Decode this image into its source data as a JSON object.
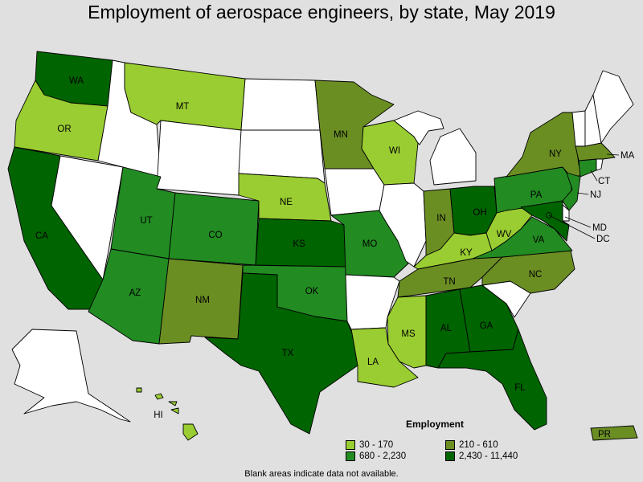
{
  "title": "Employment of aerospace engineers, by state, May 2019",
  "note": "Blank areas indicate data not available.",
  "legend": {
    "title": "Employment",
    "items": [
      {
        "label": "30 - 170",
        "color": "#9acd32"
      },
      {
        "label": "210 - 610",
        "color": "#6b8e23"
      },
      {
        "label": "680 - 2,230",
        "color": "#228b22"
      },
      {
        "label": "2,430 - 11,440",
        "color": "#006400"
      }
    ]
  },
  "colors": {
    "blank": "#ffffff",
    "background": "#e0e0e0",
    "c1": "#9acd32",
    "c2": "#6b8e23",
    "c3": "#228b22",
    "c4": "#006400"
  },
  "states": [
    {
      "abbr": "WA",
      "class": "c4"
    },
    {
      "abbr": "OR",
      "class": "c1"
    },
    {
      "abbr": "CA",
      "class": "c4"
    },
    {
      "abbr": "ID",
      "class": "blank"
    },
    {
      "abbr": "NV",
      "class": "blank"
    },
    {
      "abbr": "MT",
      "class": "c1"
    },
    {
      "abbr": "WY",
      "class": "blank"
    },
    {
      "abbr": "UT",
      "class": "c3"
    },
    {
      "abbr": "AZ",
      "class": "c3"
    },
    {
      "abbr": "CO",
      "class": "c3"
    },
    {
      "abbr": "NM",
      "class": "c2"
    },
    {
      "abbr": "ND",
      "class": "blank"
    },
    {
      "abbr": "SD",
      "class": "blank"
    },
    {
      "abbr": "NE",
      "class": "c1"
    },
    {
      "abbr": "KS",
      "class": "c4"
    },
    {
      "abbr": "OK",
      "class": "c3"
    },
    {
      "abbr": "TX",
      "class": "c4"
    },
    {
      "abbr": "MN",
      "class": "c2"
    },
    {
      "abbr": "IA",
      "class": "blank"
    },
    {
      "abbr": "MO",
      "class": "c3"
    },
    {
      "abbr": "AR",
      "class": "blank"
    },
    {
      "abbr": "LA",
      "class": "c1"
    },
    {
      "abbr": "WI",
      "class": "c1"
    },
    {
      "abbr": "IL",
      "class": "blank"
    },
    {
      "abbr": "MI",
      "class": "blank"
    },
    {
      "abbr": "IN",
      "class": "c2"
    },
    {
      "abbr": "OH",
      "class": "c4"
    },
    {
      "abbr": "KY",
      "class": "c1"
    },
    {
      "abbr": "TN",
      "class": "c2"
    },
    {
      "abbr": "MS",
      "class": "c1"
    },
    {
      "abbr": "AL",
      "class": "c4"
    },
    {
      "abbr": "GA",
      "class": "c4"
    },
    {
      "abbr": "FL",
      "class": "c4"
    },
    {
      "abbr": "SC",
      "class": "blank"
    },
    {
      "abbr": "NC",
      "class": "c2"
    },
    {
      "abbr": "VA",
      "class": "c3"
    },
    {
      "abbr": "WV",
      "class": "c1"
    },
    {
      "abbr": "PA",
      "class": "c3"
    },
    {
      "abbr": "NY",
      "class": "c2"
    },
    {
      "abbr": "VT",
      "class": "blank"
    },
    {
      "abbr": "NH",
      "class": "blank"
    },
    {
      "abbr": "ME",
      "class": "blank"
    },
    {
      "abbr": "MA",
      "class": "c2"
    },
    {
      "abbr": "RI",
      "class": "blank"
    },
    {
      "abbr": "CT",
      "class": "c3"
    },
    {
      "abbr": "NJ",
      "class": "c3"
    },
    {
      "abbr": "DE",
      "class": "blank"
    },
    {
      "abbr": "MD",
      "class": "c4"
    },
    {
      "abbr": "DC",
      "class": "c4"
    },
    {
      "abbr": "AK",
      "class": "blank"
    },
    {
      "abbr": "HI",
      "class": "c1"
    },
    {
      "abbr": "PR",
      "class": "c2"
    }
  ]
}
